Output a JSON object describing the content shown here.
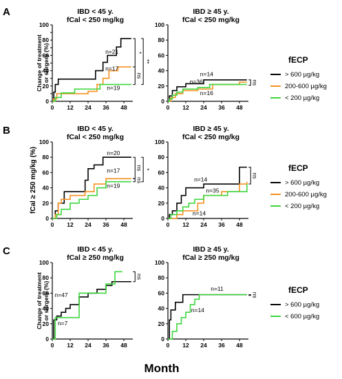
{
  "x_axis_label": "Month",
  "rows": [
    {
      "label": "A",
      "ylabel_lines": [
        "Change of treatment",
        "or surgery (%)"
      ],
      "ylabel_style": "small",
      "legend": {
        "title": "fECP",
        "entries": [
          {
            "label": "> 600 µg/kg",
            "color": "#000000"
          },
          {
            "label": "200-600 µg/kg",
            "color": "#f5901e"
          },
          {
            "label": "< 200 µg/kg",
            "color": "#3dd63d"
          }
        ]
      }
    },
    {
      "label": "B",
      "ylabel_lines": [
        "fCal ≥ 250 mg/kg (%)"
      ],
      "ylabel_style": "large",
      "legend": {
        "title": "fECP",
        "entries": [
          {
            "label": "> 600 µg/kg",
            "color": "#000000"
          },
          {
            "label": "200-600 µg/kg",
            "color": "#f5901e"
          },
          {
            "label": "< 200 µg/kg",
            "color": "#3dd63d"
          }
        ]
      }
    },
    {
      "label": "C",
      "ylabel_lines": [
        "Change of treatment",
        "or surgery (%)"
      ],
      "ylabel_style": "small",
      "legend": {
        "title": "fECP",
        "entries": [
          {
            "label": "> 600 µg/kg",
            "color": "#000000"
          },
          {
            "label": "< 600 µg/kg",
            "color": "#3dd63d"
          }
        ]
      }
    }
  ],
  "chart_data": [
    {
      "type": "line",
      "step": true,
      "row": 0,
      "col": 0,
      "title": [
        "IBD < 45 y.",
        "fCal < 250 mg/kg"
      ],
      "xlim": [
        0,
        54
      ],
      "ylim": [
        0,
        100
      ],
      "xticks": [
        0,
        12,
        24,
        36,
        48
      ],
      "yticks": [
        0,
        10,
        20,
        30,
        40,
        50,
        60,
        70,
        80,
        90,
        100
      ],
      "series": [
        {
          "color": "#000000",
          "x": [
            0,
            1,
            2,
            4,
            24,
            29,
            32,
            34,
            37,
            39,
            43,
            46,
            53
          ],
          "y": [
            0,
            12,
            22,
            29,
            29,
            40,
            40,
            51,
            60,
            60,
            71,
            82,
            82
          ]
        },
        {
          "color": "#f5901e",
          "x": [
            0,
            1,
            3,
            12,
            24,
            30,
            34,
            38,
            44,
            53
          ],
          "y": [
            0,
            3,
            10,
            10,
            13,
            22,
            30,
            40,
            45,
            45
          ]
        },
        {
          "color": "#3dd63d",
          "x": [
            0,
            2,
            6,
            15,
            24,
            32,
            34,
            44,
            53
          ],
          "y": [
            0,
            5,
            11,
            16,
            16,
            22,
            22,
            22,
            22
          ]
        }
      ],
      "annotations": [
        {
          "text": "n=21",
          "x": 40,
          "y": 62
        },
        {
          "text": "n=17",
          "x": 40,
          "y": 40
        },
        {
          "text": "n=19",
          "x": 41,
          "y": 15
        }
      ],
      "brackets": [
        {
          "x": 55.5,
          "y1": 82,
          "y2": 45,
          "label": "*"
        },
        {
          "x": 61,
          "y1": 82,
          "y2": 22,
          "label": "**"
        },
        {
          "x": 55.5,
          "y1": 45,
          "y2": 22,
          "label": "ns"
        }
      ]
    },
    {
      "type": "line",
      "step": true,
      "row": 0,
      "col": 1,
      "title": [
        "IBD ≥ 45 y.",
        "fCal < 250 mg/kg"
      ],
      "xlim": [
        0,
        54
      ],
      "ylim": [
        0,
        100
      ],
      "xticks": [
        0,
        12,
        24,
        36,
        48
      ],
      "yticks": [
        0,
        20,
        40,
        60,
        80,
        100
      ],
      "series": [
        {
          "color": "#000000",
          "x": [
            0,
            1,
            3,
            6,
            12,
            24,
            48,
            53
          ],
          "y": [
            0,
            7,
            14,
            19,
            23,
            28,
            28,
            28
          ]
        },
        {
          "color": "#f5901e",
          "x": [
            0,
            2,
            5,
            10,
            20,
            30,
            48,
            53
          ],
          "y": [
            0,
            5,
            10,
            14,
            16,
            22,
            25,
            25
          ]
        },
        {
          "color": "#3dd63d",
          "x": [
            0,
            1,
            3,
            6,
            10,
            20,
            28,
            53
          ],
          "y": [
            0,
            3,
            8,
            12,
            16,
            18,
            22,
            22
          ]
        }
      ],
      "annotations": [
        {
          "text": "n=14",
          "x": 26,
          "y": 33
        },
        {
          "text": "n=36",
          "x": 19,
          "y": 23
        },
        {
          "text": "n=16",
          "x": 26,
          "y": 8
        }
      ],
      "brackets": [
        {
          "x": 55.5,
          "y1": 28,
          "y2": 21,
          "label": "ns"
        }
      ]
    },
    {
      "type": "line",
      "step": true,
      "row": 1,
      "col": 0,
      "title": [
        "IBD < 45 y.",
        "fCal < 250 mg/kg"
      ],
      "xlim": [
        0,
        54
      ],
      "ylim": [
        0,
        100
      ],
      "xticks": [
        0,
        12,
        24,
        36,
        48
      ],
      "yticks": [
        0,
        20,
        40,
        60,
        80,
        100
      ],
      "series": [
        {
          "color": "#000000",
          "x": [
            0,
            2,
            4,
            8,
            12,
            22,
            24,
            28,
            34,
            53
          ],
          "y": [
            0,
            10,
            20,
            35,
            35,
            50,
            65,
            70,
            80,
            80
          ]
        },
        {
          "color": "#f5901e",
          "x": [
            0,
            2,
            4,
            6,
            12,
            22,
            28,
            36,
            53
          ],
          "y": [
            0,
            5,
            20,
            25,
            30,
            35,
            45,
            52,
            52
          ]
        },
        {
          "color": "#3dd63d",
          "x": [
            0,
            3,
            6,
            12,
            18,
            24,
            30,
            36,
            53
          ],
          "y": [
            0,
            5,
            12,
            20,
            25,
            30,
            40,
            48,
            48
          ]
        }
      ],
      "annotations": [
        {
          "text": "n=20",
          "x": 41,
          "y": 83
        },
        {
          "text": "n=17",
          "x": 41,
          "y": 60
        },
        {
          "text": "n=19",
          "x": 41,
          "y": 40
        }
      ],
      "brackets": [
        {
          "x": 55.5,
          "y1": 80,
          "y2": 52,
          "label": "ns"
        },
        {
          "x": 61,
          "y1": 80,
          "y2": 48,
          "label": "*"
        },
        {
          "x": 55.5,
          "y1": 52,
          "y2": 48,
          "label": "ns"
        }
      ]
    },
    {
      "type": "line",
      "step": true,
      "row": 1,
      "col": 1,
      "title": [
        "IBD ≥ 45 y.",
        "fCal < 250 mg/kg"
      ],
      "xlim": [
        0,
        54
      ],
      "ylim": [
        0,
        100
      ],
      "xticks": [
        0,
        12,
        24,
        36,
        48
      ],
      "yticks": [
        0,
        20,
        40,
        60,
        80,
        100
      ],
      "series": [
        {
          "color": "#000000",
          "x": [
            0,
            1,
            3,
            6,
            9,
            12,
            20,
            24,
            30,
            48,
            53
          ],
          "y": [
            0,
            5,
            10,
            20,
            30,
            40,
            40,
            45,
            45,
            67,
            67
          ]
        },
        {
          "color": "#f5901e",
          "x": [
            0,
            6,
            10,
            20,
            24,
            36,
            48,
            53
          ],
          "y": [
            0,
            5,
            10,
            20,
            30,
            35,
            45,
            48
          ]
        },
        {
          "color": "#3dd63d",
          "x": [
            0,
            2,
            6,
            10,
            14,
            18,
            24,
            30,
            40,
            53
          ],
          "y": [
            0,
            5,
            10,
            15,
            20,
            25,
            30,
            30,
            35,
            45
          ]
        }
      ],
      "annotations": [
        {
          "text": "n=14",
          "x": 22,
          "y": 48
        },
        {
          "text": "n=35",
          "x": 30,
          "y": 34
        },
        {
          "text": "n=14",
          "x": 21,
          "y": 4
        }
      ],
      "brackets": [
        {
          "x": 55.5,
          "y1": 67,
          "y2": 45,
          "label": "ns"
        }
      ]
    },
    {
      "type": "line",
      "step": true,
      "row": 2,
      "col": 0,
      "title": [
        "IBD < 45 y.",
        "fCal ≥ 250 mg/kg"
      ],
      "xlim": [
        0,
        54
      ],
      "ylim": [
        0,
        100
      ],
      "xticks": [
        0,
        12,
        24,
        36,
        48
      ],
      "yticks": [
        0,
        20,
        40,
        60,
        80,
        100
      ],
      "series": [
        {
          "color": "#000000",
          "x": [
            0,
            1,
            3,
            6,
            9,
            12,
            18,
            24,
            30,
            36,
            40,
            53
          ],
          "y": [
            0,
            25,
            30,
            35,
            40,
            45,
            55,
            60,
            65,
            70,
            75,
            75
          ]
        },
        {
          "color": "#3dd63d",
          "x": [
            0,
            2,
            12,
            18,
            24,
            36,
            42,
            46,
            47
          ],
          "y": [
            0,
            28,
            28,
            60,
            60,
            72,
            88,
            88,
            88
          ]
        }
      ],
      "annotations": [
        {
          "text": "n=47",
          "x": 6,
          "y": 55
        },
        {
          "text": "n=7",
          "x": 7,
          "y": 18
        }
      ],
      "brackets": [
        {
          "x": 55.5,
          "y1": 88,
          "y2": 75,
          "label": "ns"
        }
      ]
    },
    {
      "type": "line",
      "step": true,
      "row": 2,
      "col": 1,
      "title": [
        "IBD ≥ 45 y.",
        "fCal ≥ 250 mg/kg"
      ],
      "xlim": [
        0,
        54
      ],
      "ylim": [
        0,
        100
      ],
      "xticks": [
        0,
        12,
        24,
        36,
        48
      ],
      "yticks": [
        0,
        20,
        40,
        60,
        80,
        100
      ],
      "series": [
        {
          "color": "#000000",
          "x": [
            0,
            1,
            2,
            5,
            10,
            53
          ],
          "y": [
            0,
            25,
            38,
            48,
            58,
            58
          ]
        },
        {
          "color": "#3dd63d",
          "x": [
            0,
            3,
            6,
            9,
            12,
            15,
            18,
            21,
            53
          ],
          "y": [
            0,
            10,
            20,
            28,
            35,
            45,
            52,
            58,
            58
          ]
        }
      ],
      "annotations": [
        {
          "text": "n=11",
          "x": 33,
          "y": 63
        },
        {
          "text": "n=14",
          "x": 20,
          "y": 35
        }
      ],
      "brackets": [
        {
          "x": 55.5,
          "y1": 58,
          "y2": 57,
          "label": "ns"
        }
      ]
    }
  ]
}
